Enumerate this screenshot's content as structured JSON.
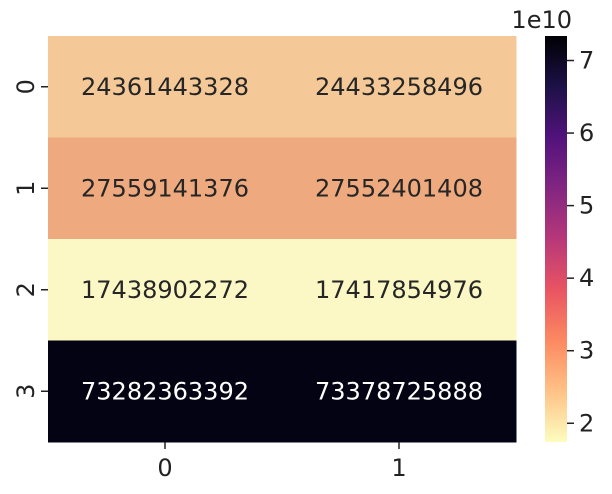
{
  "chart_data": {
    "type": "heatmap",
    "title": "",
    "xlabel": "",
    "ylabel": "",
    "x_categories": [
      "0",
      "1"
    ],
    "y_categories": [
      "0",
      "1",
      "2",
      "3"
    ],
    "values": [
      [
        24361443328,
        24433258496
      ],
      [
        27559141376,
        27552401408
      ],
      [
        17438902272,
        17417854976
      ],
      [
        73282363392,
        73378725888
      ]
    ],
    "cell_labels": [
      [
        "24361443328",
        "24433258496"
      ],
      [
        "27559141376",
        "27552401408"
      ],
      [
        "17438902272",
        "17417854976"
      ],
      [
        "73282363392",
        "73378725888"
      ]
    ],
    "cell_colors": [
      [
        "#f4c897",
        "#f4c897"
      ],
      [
        "#eeaa7e",
        "#eeaa7e"
      ],
      [
        "#fbf8c6",
        "#fbf8c6"
      ],
      [
        "#030313",
        "#030313"
      ]
    ],
    "cell_text_colors": [
      [
        "#262626",
        "#262626"
      ],
      [
        "#262626",
        "#262626"
      ],
      [
        "#262626",
        "#262626"
      ],
      [
        "#ffffff",
        "#ffffff"
      ]
    ],
    "colormap": "magma_r",
    "colorbar": {
      "range": [
        17417854976,
        73378725888
      ],
      "ticks": [
        20000000000.0,
        30000000000.0,
        40000000000.0,
        50000000000.0,
        60000000000.0,
        70000000000.0
      ],
      "tick_labels": [
        "2",
        "3",
        "4",
        "5",
        "6",
        "7"
      ],
      "offset_label": "1e10",
      "gradient_stops": [
        "#fcfdbf",
        "#fec287",
        "#fc8961",
        "#e95462",
        "#b73779",
        "#822681",
        "#51127c",
        "#1d1147",
        "#000004"
      ]
    }
  }
}
